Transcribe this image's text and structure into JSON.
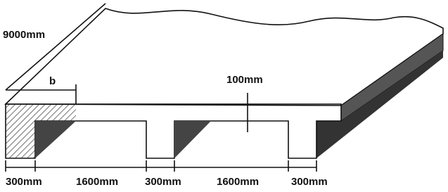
{
  "labels": {
    "length": "9000mm",
    "width_symbol": "b",
    "thickness": "100mm",
    "dimensions": [
      "300mm",
      "1600mm",
      "300mm",
      "1600mm",
      "300mm"
    ]
  }
}
